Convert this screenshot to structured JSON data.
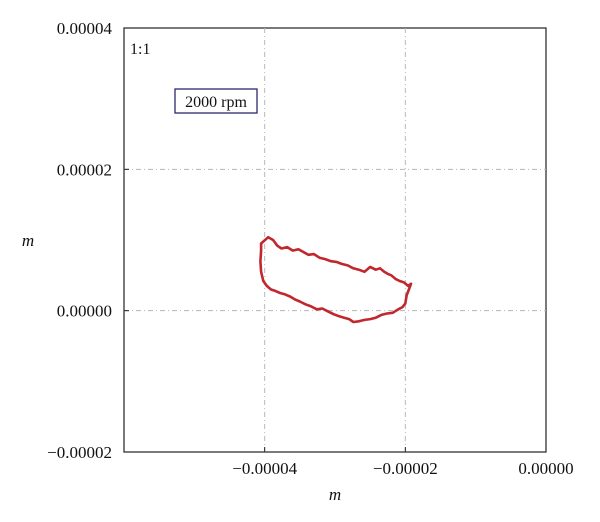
{
  "chart_data": {
    "type": "line",
    "title": "",
    "xlabel": "m",
    "ylabel": "m",
    "xlim": [
      -6e-05,
      0.0
    ],
    "ylim": [
      -2e-05,
      4e-05
    ],
    "x_ticks": [
      -4e-05,
      -2e-05,
      0.0
    ],
    "x_tick_labels": [
      "−0.00004",
      "−0.00002",
      "0.00000"
    ],
    "y_ticks": [
      -2e-05,
      0.0,
      2e-05,
      4e-05
    ],
    "y_tick_labels": [
      "−0.00002",
      "0.00000",
      "0.00002",
      "0.00004"
    ],
    "grid": true,
    "annotations": {
      "ratio": "1:1",
      "speed_box": "2000 rpm"
    },
    "series": [
      {
        "color": "#c0282d",
        "x": [
          -4.05e-05,
          -3.95e-05,
          -3.88e-05,
          -3.82e-05,
          -3.76e-05,
          -3.68e-05,
          -3.6e-05,
          -3.52e-05,
          -3.45e-05,
          -3.38e-05,
          -3.3e-05,
          -3.22e-05,
          -3.14e-05,
          -3.06e-05,
          -2.98e-05,
          -2.9e-05,
          -2.82e-05,
          -2.74e-05,
          -2.66e-05,
          -2.58e-05,
          -2.5e-05,
          -2.42e-05,
          -2.36e-05,
          -2.3e-05,
          -2.25e-05,
          -2.2e-05,
          -2.14e-05,
          -2.08e-05,
          -2.02e-05,
          -1.96e-05,
          -1.92e-05,
          -1.95e-05,
          -1.98e-05,
          -2e-05,
          -2.04e-05,
          -2.1e-05,
          -2.18e-05,
          -2.26e-05,
          -2.34e-05,
          -2.42e-05,
          -2.5e-05,
          -2.58e-05,
          -2.66e-05,
          -2.74e-05,
          -2.8e-05,
          -2.87e-05,
          -2.94e-05,
          -3.02e-05,
          -3.1e-05,
          -3.18e-05,
          -3.26e-05,
          -3.34e-05,
          -3.42e-05,
          -3.5e-05,
          -3.57e-05,
          -3.64e-05,
          -3.71e-05,
          -3.78e-05,
          -3.85e-05,
          -3.91e-05,
          -3.97e-05,
          -4.02e-05,
          -4.05e-05,
          -4.06e-05,
          -4.05e-05
        ],
        "y": [
          9.5e-06,
          1.04e-05,
          1e-05,
          9.2e-06,
          8.8e-06,
          9e-06,
          8.5e-06,
          8.7e-06,
          8.3e-06,
          7.9e-06,
          8e-06,
          7.5e-06,
          7.3e-06,
          7e-06,
          6.9e-06,
          6.6e-06,
          6.4e-06,
          6e-06,
          5.8e-06,
          5.5e-06,
          6.2e-06,
          5.8e-06,
          6e-06,
          5.5e-06,
          5.2e-06,
          5e-06,
          4.5e-06,
          4.2e-06,
          4e-06,
          3.5e-06,
          3.8e-06,
          3e-06,
          2.2e-06,
          1e-06,
          5e-07,
          2e-07,
          -3e-07,
          -4e-07,
          -6e-07,
          -1e-06,
          -1.2e-06,
          -1.3e-06,
          -1.5e-06,
          -1.6e-06,
          -1.2e-06,
          -1e-06,
          -8e-07,
          -5e-07,
          -1e-07,
          3e-07,
          2e-07,
          6e-07,
          9e-07,
          1.3e-06,
          1.6e-06,
          2e-06,
          2.3e-06,
          2.5e-06,
          2.8e-06,
          3e-06,
          3.5e-06,
          4.2e-06,
          5.5e-06,
          7e-06,
          8.5e-06
        ]
      }
    ]
  }
}
